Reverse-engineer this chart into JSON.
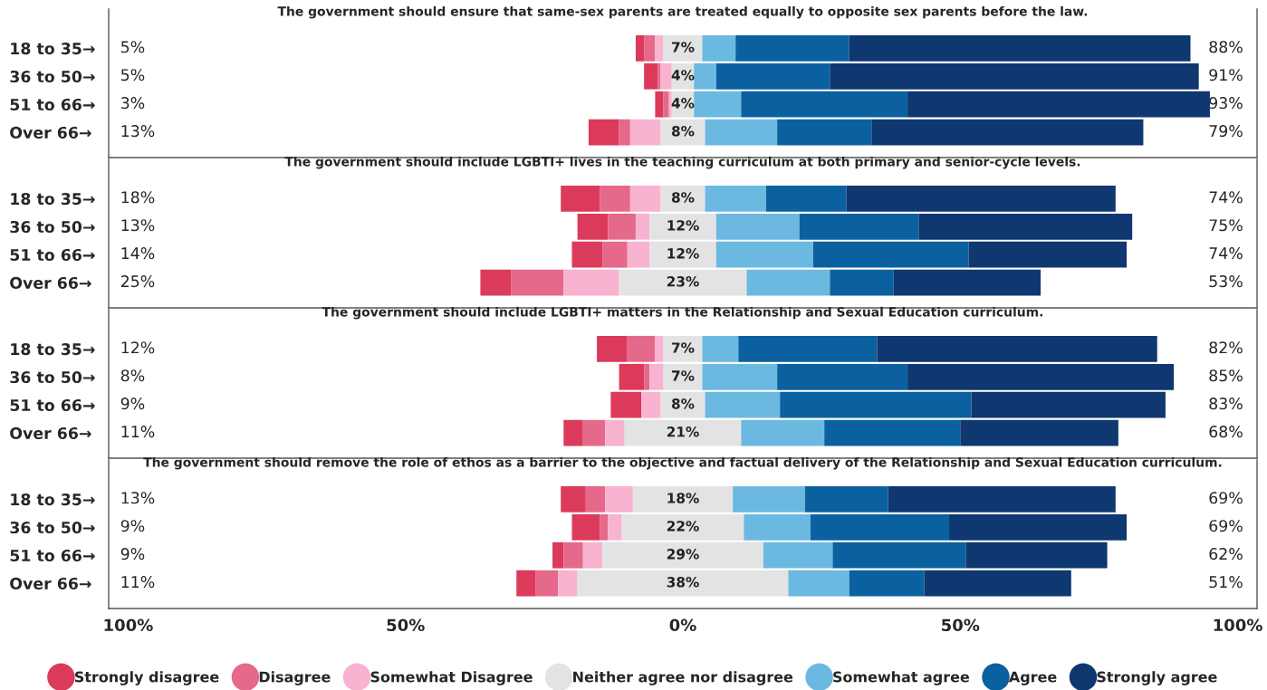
{
  "chart_data": [
    {
      "type": "bar",
      "orientation": "horizontal",
      "title": "The government should ensure that same-sex parents are treated equally to opposite sex parents before the law.",
      "categories": [
        "18 to 35→",
        "36 to 50→",
        "51 to 66→",
        "Over 66→"
      ],
      "series": [
        {
          "name": "Strongly disagree",
          "color": "#dc3a5a",
          "values": [
            1.5,
            2.5,
            1.5,
            5.5
          ],
          "base": [
            -8.5,
            -7,
            -5,
            -17
          ]
        },
        {
          "name": "Disagree",
          "color": "#e4698a",
          "values": [
            2,
            0.5,
            1,
            2
          ],
          "base": [
            -7,
            -4.5,
            -3.5,
            -11.5
          ]
        },
        {
          "name": "Somewhat Disagree",
          "color": "#f7b3cf",
          "values": [
            1.5,
            2,
            0.5,
            5.5
          ],
          "base": [
            -5,
            -4,
            -2.5,
            -9.5
          ]
        },
        {
          "name": "Neither agree nor disagree",
          "color": "#e3e3e3",
          "values": [
            7,
            4,
            4,
            8
          ],
          "base": [
            -3.5,
            -2,
            -2,
            -4
          ],
          "value_labels": [
            "7%",
            "4%",
            "4%",
            "8%"
          ]
        },
        {
          "name": "Somewhat agree",
          "color": "#6bb9e1",
          "values": [
            6,
            4,
            8.5,
            13
          ],
          "base": [
            3.5,
            2,
            2,
            4
          ]
        },
        {
          "name": "Agree",
          "color": "#0b61a0",
          "values": [
            20.5,
            20.5,
            30,
            17
          ],
          "base": [
            9.5,
            6,
            10.5,
            17
          ]
        },
        {
          "name": "Strongly agree",
          "color": "#0f3770",
          "values": [
            61.5,
            66.5,
            54.5,
            49
          ],
          "base": [
            30,
            26.5,
            40.5,
            34
          ]
        }
      ],
      "xlim": [
        -103.5,
        103.5
      ],
      "tick_labels": "y",
      "annotations": [
        "5%",
        "5%",
        "3%",
        "13%",
        "88%",
        "91%",
        "93%",
        "79%"
      ],
      "legend": "bottom"
    },
    {
      "type": "bar",
      "orientation": "horizontal",
      "title": "The government should include LGBTI+ lives in the teaching curriculum at both primary and senior-cycle levels.",
      "categories": [
        "18 to 35→",
        "36 to 50→",
        "51 to 66→",
        "Over 66→"
      ],
      "series": [
        {
          "color": "#dc3a5a",
          "values": [
            7,
            5.5,
            5.5,
            5.5
          ],
          "base": [
            -22,
            -19,
            -20,
            -36.5
          ]
        },
        {
          "color": "#e4698a",
          "values": [
            5.5,
            5,
            4.5,
            9.5
          ],
          "base": [
            -15,
            -13.5,
            -14.5,
            -31
          ]
        },
        {
          "color": "#f7b3cf",
          "values": [
            5.5,
            2.5,
            4,
            10
          ],
          "base": [
            -9.5,
            -8.5,
            -10,
            -21.5
          ]
        },
        {
          "color": "#e3e3e3",
          "values": [
            8,
            12,
            12,
            23
          ],
          "base": [
            -4,
            -6,
            -6,
            -11.5
          ],
          "value_labels": [
            "8%",
            "12%",
            "12%",
            "23%"
          ]
        },
        {
          "color": "#6bb9e1",
          "values": [
            11,
            15,
            17.5,
            15
          ],
          "base": [
            4,
            6,
            6,
            11.5
          ]
        },
        {
          "color": "#0b61a0",
          "values": [
            14.5,
            21.5,
            28,
            11.5
          ],
          "base": [
            15,
            21,
            23.5,
            26.5
          ]
        },
        {
          "color": "#0f3770",
          "values": [
            48.5,
            38.5,
            28.5,
            26.5
          ],
          "base": [
            29.5,
            42.5,
            51.5,
            38
          ]
        }
      ],
      "xlim": [
        -103.5,
        103.5
      ],
      "tick_labels": "y",
      "annotations": [
        "18%",
        "13%",
        "14%",
        "25%",
        "74%",
        "75%",
        "74%",
        "53%"
      ]
    },
    {
      "type": "bar",
      "orientation": "horizontal",
      "title": "The government should include LGBTI+ matters in the Relationship and Sexual Education curriculum.",
      "categories": [
        "18 to 35→",
        "36 to 50→",
        "51 to 66→",
        "Over 66→"
      ],
      "series": [
        {
          "color": "#dc3a5a",
          "values": [
            5.5,
            4.5,
            5.5,
            3.5
          ],
          "base": [
            -15.5,
            -11.5,
            -13,
            -21.5
          ]
        },
        {
          "color": "#e4698a",
          "values": [
            5,
            1,
            null,
            4
          ],
          "base": [
            -10,
            -7,
            null,
            -18
          ]
        },
        {
          "color": "#f7b3cf",
          "values": [
            1.5,
            2.5,
            3.5,
            3.5
          ],
          "base": [
            -5,
            -6,
            -7.5,
            -14
          ]
        },
        {
          "color": "#e3e3e3",
          "values": [
            7,
            7,
            8,
            21
          ],
          "base": [
            -3.5,
            -3.5,
            -4,
            -10.5
          ],
          "value_labels": [
            "7%",
            "7%",
            "8%",
            "21%"
          ]
        },
        {
          "color": "#6bb9e1",
          "values": [
            6.5,
            13.5,
            13.5,
            15
          ],
          "base": [
            3.5,
            3.5,
            4,
            10.5
          ]
        },
        {
          "color": "#0b61a0",
          "values": [
            25,
            23.5,
            34.5,
            24.5
          ],
          "base": [
            10,
            17,
            17.5,
            25.5
          ]
        },
        {
          "color": "#0f3770",
          "values": [
            50.5,
            48,
            35,
            28.5
          ],
          "base": [
            35,
            40.5,
            52,
            50
          ]
        }
      ],
      "xlim": [
        -103.5,
        103.5
      ],
      "tick_labels": "y",
      "annotations": [
        "12%",
        "8%",
        "9%",
        "11%",
        "82%",
        "85%",
        "83%",
        "68%"
      ]
    },
    {
      "type": "bar",
      "orientation": "horizontal",
      "title": "The government should remove the role of ethos as a barrier to the objective and factual delivery of the Relationship and Sexual Education curriculum.",
      "categories": [
        "18 to 35→",
        "36 to 50→",
        "51 to 66→",
        "Over 66→"
      ],
      "series": [
        {
          "color": "#dc3a5a",
          "values": [
            4.5,
            5,
            2,
            3.5
          ],
          "base": [
            -22,
            -20,
            -23.5,
            -30
          ]
        },
        {
          "color": "#e4698a",
          "values": [
            3.5,
            1.5,
            3.5,
            4
          ],
          "base": [
            -17.5,
            -15,
            -21.5,
            -26.5
          ]
        },
        {
          "color": "#f7b3cf",
          "values": [
            5,
            2.5,
            3.5,
            3.5
          ],
          "base": [
            -14,
            -13.5,
            -18,
            -22.5
          ]
        },
        {
          "color": "#e3e3e3",
          "values": [
            18,
            22,
            29,
            38
          ],
          "base": [
            -9,
            -11,
            -14.5,
            -19
          ],
          "value_labels": [
            "18%",
            "22%",
            "29%",
            "38%"
          ]
        },
        {
          "color": "#6bb9e1",
          "values": [
            13,
            12,
            12.5,
            11
          ],
          "base": [
            9,
            11,
            14.5,
            19
          ]
        },
        {
          "color": "#0b61a0",
          "values": [
            15,
            25,
            24,
            13.5
          ],
          "base": [
            22,
            23,
            27,
            30
          ]
        },
        {
          "color": "#0f3770",
          "values": [
            41,
            32,
            25.5,
            26.5
          ],
          "base": [
            37,
            48,
            51,
            43.5
          ]
        }
      ],
      "xlim": [
        -103.5,
        103.5
      ],
      "xticks": [
        {
          "value": -100,
          "label": "100%"
        },
        {
          "value": -50,
          "label": "50%"
        },
        {
          "value": 0,
          "label": "0%"
        },
        {
          "value": 50,
          "label": "50%"
        },
        {
          "value": 100,
          "label": "100%"
        }
      ],
      "annotations": [
        "13%",
        "9%",
        "9%",
        "11%",
        "69%",
        "69%",
        "62%",
        "51%"
      ]
    }
  ]
}
